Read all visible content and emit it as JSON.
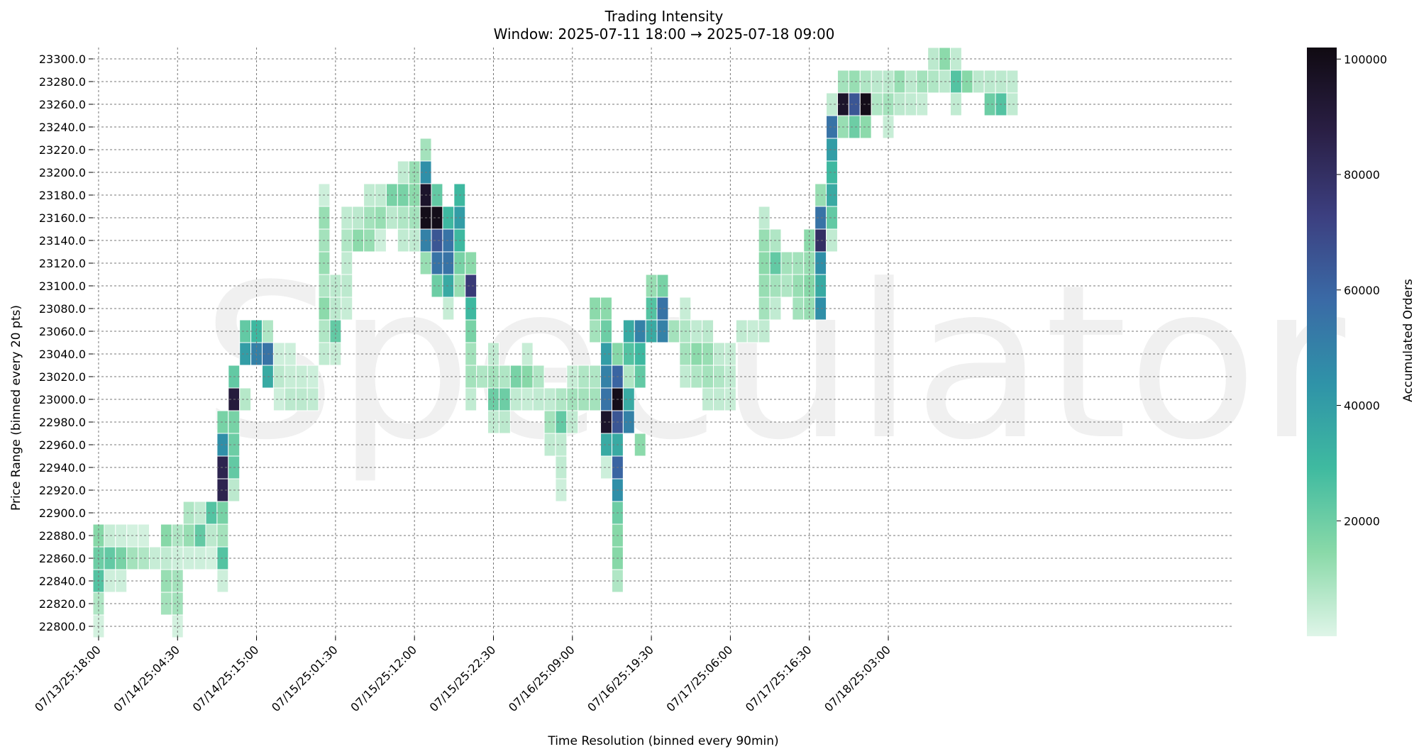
{
  "chart_data": {
    "type": "heatmap",
    "title": "Trading Intensity",
    "subtitle": "Window: 2025-07-11 18:00 → 2025-07-18 09:00",
    "xlabel": "Time Resolution (binned every 90min)",
    "ylabel": "Price Range (binned every 20 pts)",
    "colorbar_label": "Accumulated Orders",
    "watermark": "Speculator",
    "grid": true,
    "x_bins": 101,
    "y_range": [
      22800,
      23300
    ],
    "y_step": 20,
    "x_ticks": [
      {
        "label": "07/13/25:18:00",
        "bin": 0
      },
      {
        "label": "07/14/25:04:30",
        "bin": 7
      },
      {
        "label": "07/14/25:15:00",
        "bin": 14
      },
      {
        "label": "07/15/25:01:30",
        "bin": 21
      },
      {
        "label": "07/15/25:12:00",
        "bin": 28
      },
      {
        "label": "07/15/25:22:30",
        "bin": 35
      },
      {
        "label": "07/16/25:09:00",
        "bin": 42
      },
      {
        "label": "07/16/25:19:30",
        "bin": 49
      },
      {
        "label": "07/17/25:06:00",
        "bin": 56
      },
      {
        "label": "07/17/25:16:30",
        "bin": 63
      },
      {
        "label": "07/18/25:03:00",
        "bin": 70
      }
    ],
    "y_ticks": [
      "22800.0",
      "22820.0",
      "22840.0",
      "22860.0",
      "22880.0",
      "22900.0",
      "22920.0",
      "22940.0",
      "22960.0",
      "22980.0",
      "23000.0",
      "23020.0",
      "23040.0",
      "23060.0",
      "23080.0",
      "23100.0",
      "23120.0",
      "23140.0",
      "23160.0",
      "23180.0",
      "23200.0",
      "23220.0",
      "23240.0",
      "23260.0",
      "23280.0",
      "23300.0"
    ],
    "colorbar": {
      "min": 0,
      "max": 102000,
      "ticks": [
        "20000",
        "40000",
        "60000",
        "80000",
        "100000"
      ],
      "stops": [
        "#dff5e8",
        "#89d9a8",
        "#3fbaa0",
        "#2f93a8",
        "#3a6aa6",
        "#3c3f80",
        "#2a1f45",
        "#100a12"
      ]
    },
    "cells": [
      [
        0,
        22800,
        2000
      ],
      [
        0,
        22820,
        8000
      ],
      [
        0,
        22840,
        25000
      ],
      [
        0,
        22860,
        20000
      ],
      [
        0,
        22880,
        15000
      ],
      [
        1,
        22840,
        3000
      ],
      [
        1,
        22860,
        22000
      ],
      [
        1,
        22880,
        4000
      ],
      [
        2,
        22840,
        3000
      ],
      [
        2,
        22860,
        18000
      ],
      [
        2,
        22880,
        3000
      ],
      [
        3,
        22860,
        10000
      ],
      [
        3,
        22880,
        2000
      ],
      [
        4,
        22860,
        8000
      ],
      [
        4,
        22880,
        2000
      ],
      [
        5,
        22860,
        4000
      ],
      [
        6,
        22820,
        10000
      ],
      [
        6,
        22840,
        12000
      ],
      [
        6,
        22860,
        5000
      ],
      [
        6,
        22880,
        15000
      ],
      [
        7,
        22800,
        2000
      ],
      [
        7,
        22820,
        10000
      ],
      [
        7,
        22840,
        10000
      ],
      [
        7,
        22860,
        3000
      ],
      [
        7,
        22880,
        8000
      ],
      [
        8,
        22860,
        3000
      ],
      [
        8,
        22880,
        12000
      ],
      [
        8,
        22900,
        8000
      ],
      [
        9,
        22860,
        3000
      ],
      [
        9,
        22880,
        22000
      ],
      [
        9,
        22900,
        5000
      ],
      [
        10,
        22860,
        2000
      ],
      [
        10,
        22880,
        6000
      ],
      [
        10,
        22900,
        25000
      ],
      [
        11,
        22840,
        3000
      ],
      [
        11,
        22860,
        25000
      ],
      [
        11,
        22880,
        10000
      ],
      [
        11,
        22900,
        18000
      ],
      [
        11,
        22920,
        85000
      ],
      [
        11,
        22940,
        85000
      ],
      [
        11,
        22960,
        45000
      ],
      [
        11,
        22980,
        18000
      ],
      [
        12,
        22920,
        6000
      ],
      [
        12,
        22940,
        22000
      ],
      [
        12,
        22960,
        20000
      ],
      [
        12,
        22980,
        18000
      ],
      [
        12,
        23000,
        90000
      ],
      [
        12,
        23020,
        22000
      ],
      [
        13,
        23000,
        7000
      ],
      [
        13,
        23040,
        40000
      ],
      [
        13,
        23060,
        22000
      ],
      [
        14,
        23040,
        50000
      ],
      [
        14,
        23060,
        30000
      ],
      [
        15,
        23020,
        35000
      ],
      [
        15,
        23040,
        55000
      ],
      [
        15,
        23060,
        8000
      ],
      [
        16,
        23000,
        3000
      ],
      [
        16,
        23020,
        6000
      ],
      [
        16,
        23040,
        3000
      ],
      [
        17,
        23000,
        6000
      ],
      [
        17,
        23020,
        4000
      ],
      [
        17,
        23040,
        3000
      ],
      [
        18,
        23000,
        6000
      ],
      [
        18,
        23020,
        4000
      ],
      [
        19,
        23000,
        5000
      ],
      [
        19,
        23020,
        3000
      ],
      [
        20,
        23040,
        5000
      ],
      [
        20,
        23060,
        8000
      ],
      [
        20,
        23080,
        14000
      ],
      [
        20,
        23100,
        8000
      ],
      [
        20,
        23120,
        12000
      ],
      [
        20,
        23140,
        10000
      ],
      [
        20,
        23160,
        12000
      ],
      [
        20,
        23180,
        3000
      ],
      [
        21,
        23040,
        4000
      ],
      [
        21,
        23060,
        22000
      ],
      [
        21,
        23080,
        6000
      ],
      [
        21,
        23100,
        6000
      ],
      [
        22,
        23080,
        4000
      ],
      [
        22,
        23100,
        6000
      ],
      [
        22,
        23120,
        5000
      ],
      [
        22,
        23140,
        8000
      ],
      [
        22,
        23160,
        5000
      ],
      [
        23,
        23140,
        14000
      ],
      [
        23,
        23160,
        6000
      ],
      [
        24,
        23140,
        12000
      ],
      [
        24,
        23160,
        10000
      ],
      [
        24,
        23180,
        5000
      ],
      [
        25,
        23140,
        3000
      ],
      [
        25,
        23160,
        12000
      ],
      [
        25,
        23180,
        5000
      ],
      [
        26,
        23160,
        6000
      ],
      [
        26,
        23180,
        18000
      ],
      [
        27,
        23140,
        5000
      ],
      [
        27,
        23160,
        8000
      ],
      [
        27,
        23180,
        18000
      ],
      [
        27,
        23200,
        5000
      ],
      [
        28,
        23140,
        5000
      ],
      [
        28,
        23160,
        10000
      ],
      [
        28,
        23180,
        14000
      ],
      [
        28,
        23200,
        12000
      ],
      [
        29,
        23120,
        12000
      ],
      [
        29,
        23140,
        50000
      ],
      [
        29,
        23160,
        100000
      ],
      [
        29,
        23180,
        95000
      ],
      [
        29,
        23200,
        45000
      ],
      [
        29,
        23220,
        10000
      ],
      [
        30,
        23100,
        20000
      ],
      [
        30,
        23120,
        55000
      ],
      [
        30,
        23140,
        65000
      ],
      [
        30,
        23160,
        100000
      ],
      [
        30,
        23180,
        22000
      ],
      [
        31,
        23080,
        4000
      ],
      [
        31,
        23100,
        35000
      ],
      [
        31,
        23120,
        55000
      ],
      [
        31,
        23140,
        55000
      ],
      [
        31,
        23160,
        30000
      ],
      [
        32,
        23100,
        12000
      ],
      [
        32,
        23120,
        18000
      ],
      [
        32,
        23140,
        30000
      ],
      [
        32,
        23160,
        40000
      ],
      [
        32,
        23180,
        30000
      ],
      [
        33,
        23000,
        5000
      ],
      [
        33,
        23020,
        10000
      ],
      [
        33,
        23040,
        10000
      ],
      [
        33,
        23060,
        18000
      ],
      [
        33,
        23080,
        30000
      ],
      [
        33,
        23100,
        75000
      ],
      [
        33,
        23120,
        14000
      ],
      [
        34,
        23020,
        8000
      ],
      [
        35,
        22980,
        5000
      ],
      [
        35,
        23000,
        20000
      ],
      [
        35,
        23020,
        10000
      ],
      [
        35,
        23040,
        5000
      ],
      [
        36,
        22980,
        6000
      ],
      [
        36,
        23000,
        20000
      ],
      [
        36,
        23020,
        8000
      ],
      [
        37,
        23000,
        5000
      ],
      [
        37,
        23020,
        18000
      ],
      [
        38,
        23000,
        4000
      ],
      [
        38,
        23020,
        15000
      ],
      [
        38,
        23040,
        4000
      ],
      [
        39,
        23000,
        5000
      ],
      [
        39,
        23020,
        8000
      ],
      [
        40,
        22960,
        5000
      ],
      [
        40,
        22980,
        10000
      ],
      [
        40,
        23000,
        5000
      ],
      [
        41,
        22920,
        3000
      ],
      [
        41,
        22940,
        5000
      ],
      [
        41,
        22960,
        5000
      ],
      [
        41,
        22980,
        22000
      ],
      [
        41,
        23000,
        8000
      ],
      [
        42,
        22980,
        5000
      ],
      [
        42,
        23000,
        10000
      ],
      [
        42,
        23020,
        4000
      ],
      [
        43,
        23000,
        10000
      ],
      [
        43,
        23020,
        8000
      ],
      [
        44,
        23000,
        10000
      ],
      [
        44,
        23020,
        8000
      ],
      [
        44,
        23060,
        10000
      ],
      [
        44,
        23080,
        14000
      ],
      [
        45,
        22940,
        3000
      ],
      [
        45,
        22960,
        35000
      ],
      [
        45,
        22980,
        95000
      ],
      [
        45,
        23000,
        55000
      ],
      [
        45,
        23020,
        50000
      ],
      [
        45,
        23040,
        40000
      ],
      [
        45,
        23060,
        20000
      ],
      [
        45,
        23080,
        14000
      ],
      [
        46,
        22840,
        8000
      ],
      [
        46,
        22860,
        15000
      ],
      [
        46,
        22880,
        15000
      ],
      [
        46,
        22900,
        20000
      ],
      [
        46,
        22920,
        45000
      ],
      [
        46,
        22940,
        60000
      ],
      [
        46,
        22960,
        35000
      ],
      [
        46,
        22980,
        65000
      ],
      [
        46,
        23000,
        100000
      ],
      [
        46,
        23020,
        60000
      ],
      [
        46,
        23040,
        15000
      ],
      [
        47,
        22980,
        50000
      ],
      [
        47,
        23000,
        35000
      ],
      [
        47,
        23020,
        8000
      ],
      [
        47,
        23040,
        25000
      ],
      [
        47,
        23060,
        35000
      ],
      [
        48,
        22960,
        14000
      ],
      [
        48,
        23020,
        22000
      ],
      [
        48,
        23040,
        30000
      ],
      [
        48,
        23060,
        50000
      ],
      [
        49,
        23060,
        35000
      ],
      [
        49,
        23080,
        25000
      ],
      [
        49,
        23100,
        12000
      ],
      [
        50,
        23060,
        50000
      ],
      [
        50,
        23080,
        55000
      ],
      [
        50,
        23100,
        18000
      ],
      [
        51,
        23060,
        10000
      ],
      [
        52,
        23020,
        5000
      ],
      [
        52,
        23040,
        10000
      ],
      [
        52,
        23060,
        8000
      ],
      [
        52,
        23080,
        4000
      ],
      [
        53,
        23020,
        8000
      ],
      [
        53,
        23040,
        14000
      ],
      [
        53,
        23060,
        5000
      ],
      [
        54,
        23000,
        5000
      ],
      [
        54,
        23020,
        10000
      ],
      [
        54,
        23040,
        12000
      ],
      [
        54,
        23060,
        6000
      ],
      [
        55,
        23000,
        5000
      ],
      [
        55,
        23020,
        8000
      ],
      [
        55,
        23040,
        5000
      ],
      [
        56,
        23000,
        4000
      ],
      [
        56,
        23020,
        5000
      ],
      [
        56,
        23040,
        4000
      ],
      [
        57,
        23060,
        5000
      ],
      [
        58,
        23060,
        4000
      ],
      [
        59,
        23060,
        5000
      ],
      [
        59,
        23080,
        10000
      ],
      [
        59,
        23100,
        12000
      ],
      [
        59,
        23120,
        14000
      ],
      [
        59,
        23140,
        12000
      ],
      [
        59,
        23160,
        5000
      ],
      [
        60,
        23080,
        5000
      ],
      [
        60,
        23100,
        10000
      ],
      [
        60,
        23120,
        22000
      ],
      [
        60,
        23140,
        8000
      ],
      [
        61,
        23100,
        8000
      ],
      [
        61,
        23120,
        10000
      ],
      [
        62,
        23080,
        10000
      ],
      [
        62,
        23100,
        12000
      ],
      [
        62,
        23120,
        10000
      ],
      [
        63,
        23080,
        12000
      ],
      [
        63,
        23100,
        15000
      ],
      [
        63,
        23120,
        12000
      ],
      [
        63,
        23140,
        14000
      ],
      [
        64,
        23080,
        45000
      ],
      [
        64,
        23100,
        35000
      ],
      [
        64,
        23120,
        45000
      ],
      [
        64,
        23140,
        80000
      ],
      [
        64,
        23160,
        55000
      ],
      [
        64,
        23180,
        12000
      ],
      [
        65,
        23140,
        5000
      ],
      [
        65,
        23160,
        22000
      ],
      [
        65,
        23180,
        35000
      ],
      [
        65,
        23200,
        30000
      ],
      [
        65,
        23220,
        40000
      ],
      [
        65,
        23240,
        55000
      ],
      [
        65,
        23260,
        5000
      ],
      [
        66,
        23240,
        12000
      ],
      [
        66,
        23260,
        95000
      ],
      [
        66,
        23280,
        10000
      ],
      [
        67,
        23240,
        20000
      ],
      [
        67,
        23260,
        65000
      ],
      [
        67,
        23280,
        12000
      ],
      [
        68,
        23240,
        14000
      ],
      [
        68,
        23260,
        100000
      ],
      [
        68,
        23280,
        8000
      ],
      [
        69,
        23260,
        8000
      ],
      [
        69,
        23280,
        6000
      ],
      [
        70,
        23240,
        4000
      ],
      [
        70,
        23260,
        10000
      ],
      [
        70,
        23280,
        6000
      ],
      [
        71,
        23260,
        6000
      ],
      [
        71,
        23280,
        12000
      ],
      [
        72,
        23260,
        5000
      ],
      [
        72,
        23280,
        6000
      ],
      [
        73,
        23260,
        4000
      ],
      [
        73,
        23280,
        10000
      ],
      [
        74,
        23280,
        8000
      ],
      [
        74,
        23300,
        6000
      ],
      [
        75,
        23280,
        6000
      ],
      [
        75,
        23300,
        14000
      ],
      [
        76,
        23260,
        5000
      ],
      [
        76,
        23280,
        25000
      ],
      [
        76,
        23300,
        5000
      ],
      [
        77,
        23280,
        15000
      ],
      [
        78,
        23280,
        6000
      ],
      [
        79,
        23260,
        20000
      ],
      [
        79,
        23280,
        6000
      ],
      [
        80,
        23260,
        25000
      ],
      [
        80,
        23280,
        6000
      ],
      [
        81,
        23260,
        5000
      ],
      [
        81,
        23280,
        5000
      ]
    ]
  }
}
